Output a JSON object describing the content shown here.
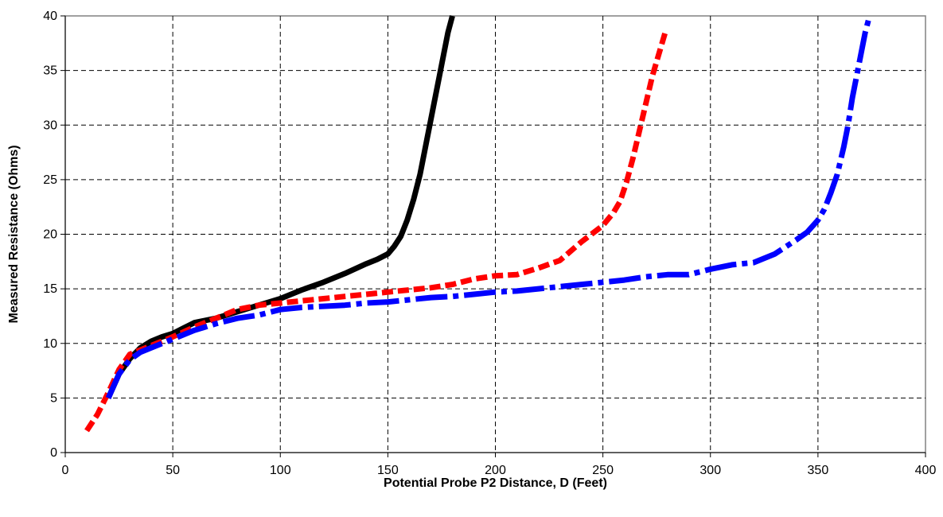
{
  "chart_data": {
    "type": "line",
    "title": "",
    "xlabel": "Potential Probe P2 Distance, D (Feet)",
    "ylabel": "Measured Resistance (Ohms)",
    "xlim": [
      0,
      400
    ],
    "ylim": [
      0,
      40
    ],
    "x_ticks": [
      "0",
      "50",
      "100",
      "150",
      "200",
      "250",
      "300",
      "350",
      "400"
    ],
    "y_ticks": [
      "0",
      "5",
      "10",
      "15",
      "20",
      "25",
      "30",
      "35",
      "40"
    ],
    "grid": true,
    "legend": "none",
    "series": [
      {
        "color": "#000000",
        "style": "solid",
        "x": [
          20,
          25,
          30,
          35,
          40,
          45,
          50,
          55,
          60,
          65,
          70,
          80,
          90,
          100,
          110,
          120,
          130,
          140,
          145,
          150,
          153,
          156,
          159,
          162,
          165,
          168,
          170,
          172,
          174,
          176,
          178,
          180
        ],
        "y": [
          5,
          7.2,
          8.6,
          9.6,
          10.2,
          10.6,
          10.9,
          11.4,
          11.9,
          12.1,
          12.3,
          12.9,
          13.5,
          14.1,
          14.9,
          15.6,
          16.4,
          17.3,
          17.7,
          18.2,
          18.9,
          19.8,
          21.3,
          23.2,
          25.5,
          28.5,
          30.5,
          32.5,
          34.5,
          36.5,
          38.5,
          40
        ]
      },
      {
        "color": "#ff0000",
        "style": "dashed",
        "x": [
          10,
          15,
          20,
          25,
          30,
          35,
          40,
          50,
          60,
          70,
          80,
          90,
          100,
          110,
          120,
          130,
          140,
          150,
          160,
          170,
          180,
          190,
          200,
          210,
          220,
          230,
          240,
          250,
          255,
          258,
          261,
          264,
          267,
          270,
          273,
          276,
          279
        ],
        "y": [
          2,
          3.5,
          5.5,
          7.6,
          9.0,
          9.4,
          9.8,
          10.6,
          11.5,
          12.3,
          13.1,
          13.5,
          13.7,
          13.9,
          14.1,
          14.3,
          14.5,
          14.7,
          14.9,
          15.1,
          15.4,
          15.9,
          16.2,
          16.3,
          16.9,
          17.6,
          19.3,
          20.8,
          22.0,
          23.0,
          24.8,
          27.0,
          29.5,
          32.0,
          34.5,
          36.5,
          38.5
        ]
      },
      {
        "color": "#0000ff",
        "style": "dash-dot",
        "x": [
          20,
          25,
          30,
          35,
          40,
          50,
          60,
          70,
          80,
          90,
          100,
          110,
          120,
          130,
          140,
          150,
          160,
          170,
          180,
          190,
          200,
          210,
          220,
          230,
          240,
          250,
          260,
          270,
          280,
          290,
          300,
          310,
          320,
          330,
          340,
          345,
          350,
          353,
          356,
          359,
          362,
          364,
          366,
          368,
          370,
          372,
          374
        ],
        "y": [
          5,
          7.2,
          8.5,
          9.2,
          9.6,
          10.4,
          11.2,
          11.8,
          12.3,
          12.6,
          13.1,
          13.3,
          13.4,
          13.5,
          13.7,
          13.8,
          14.0,
          14.2,
          14.3,
          14.5,
          14.7,
          14.8,
          15.0,
          15.2,
          15.4,
          15.6,
          15.8,
          16.1,
          16.3,
          16.3,
          16.8,
          17.2,
          17.4,
          18.2,
          19.5,
          20.2,
          21.3,
          22.3,
          23.8,
          25.5,
          28.0,
          30.0,
          32.5,
          34.5,
          36.5,
          38.5,
          40
        ]
      }
    ]
  }
}
